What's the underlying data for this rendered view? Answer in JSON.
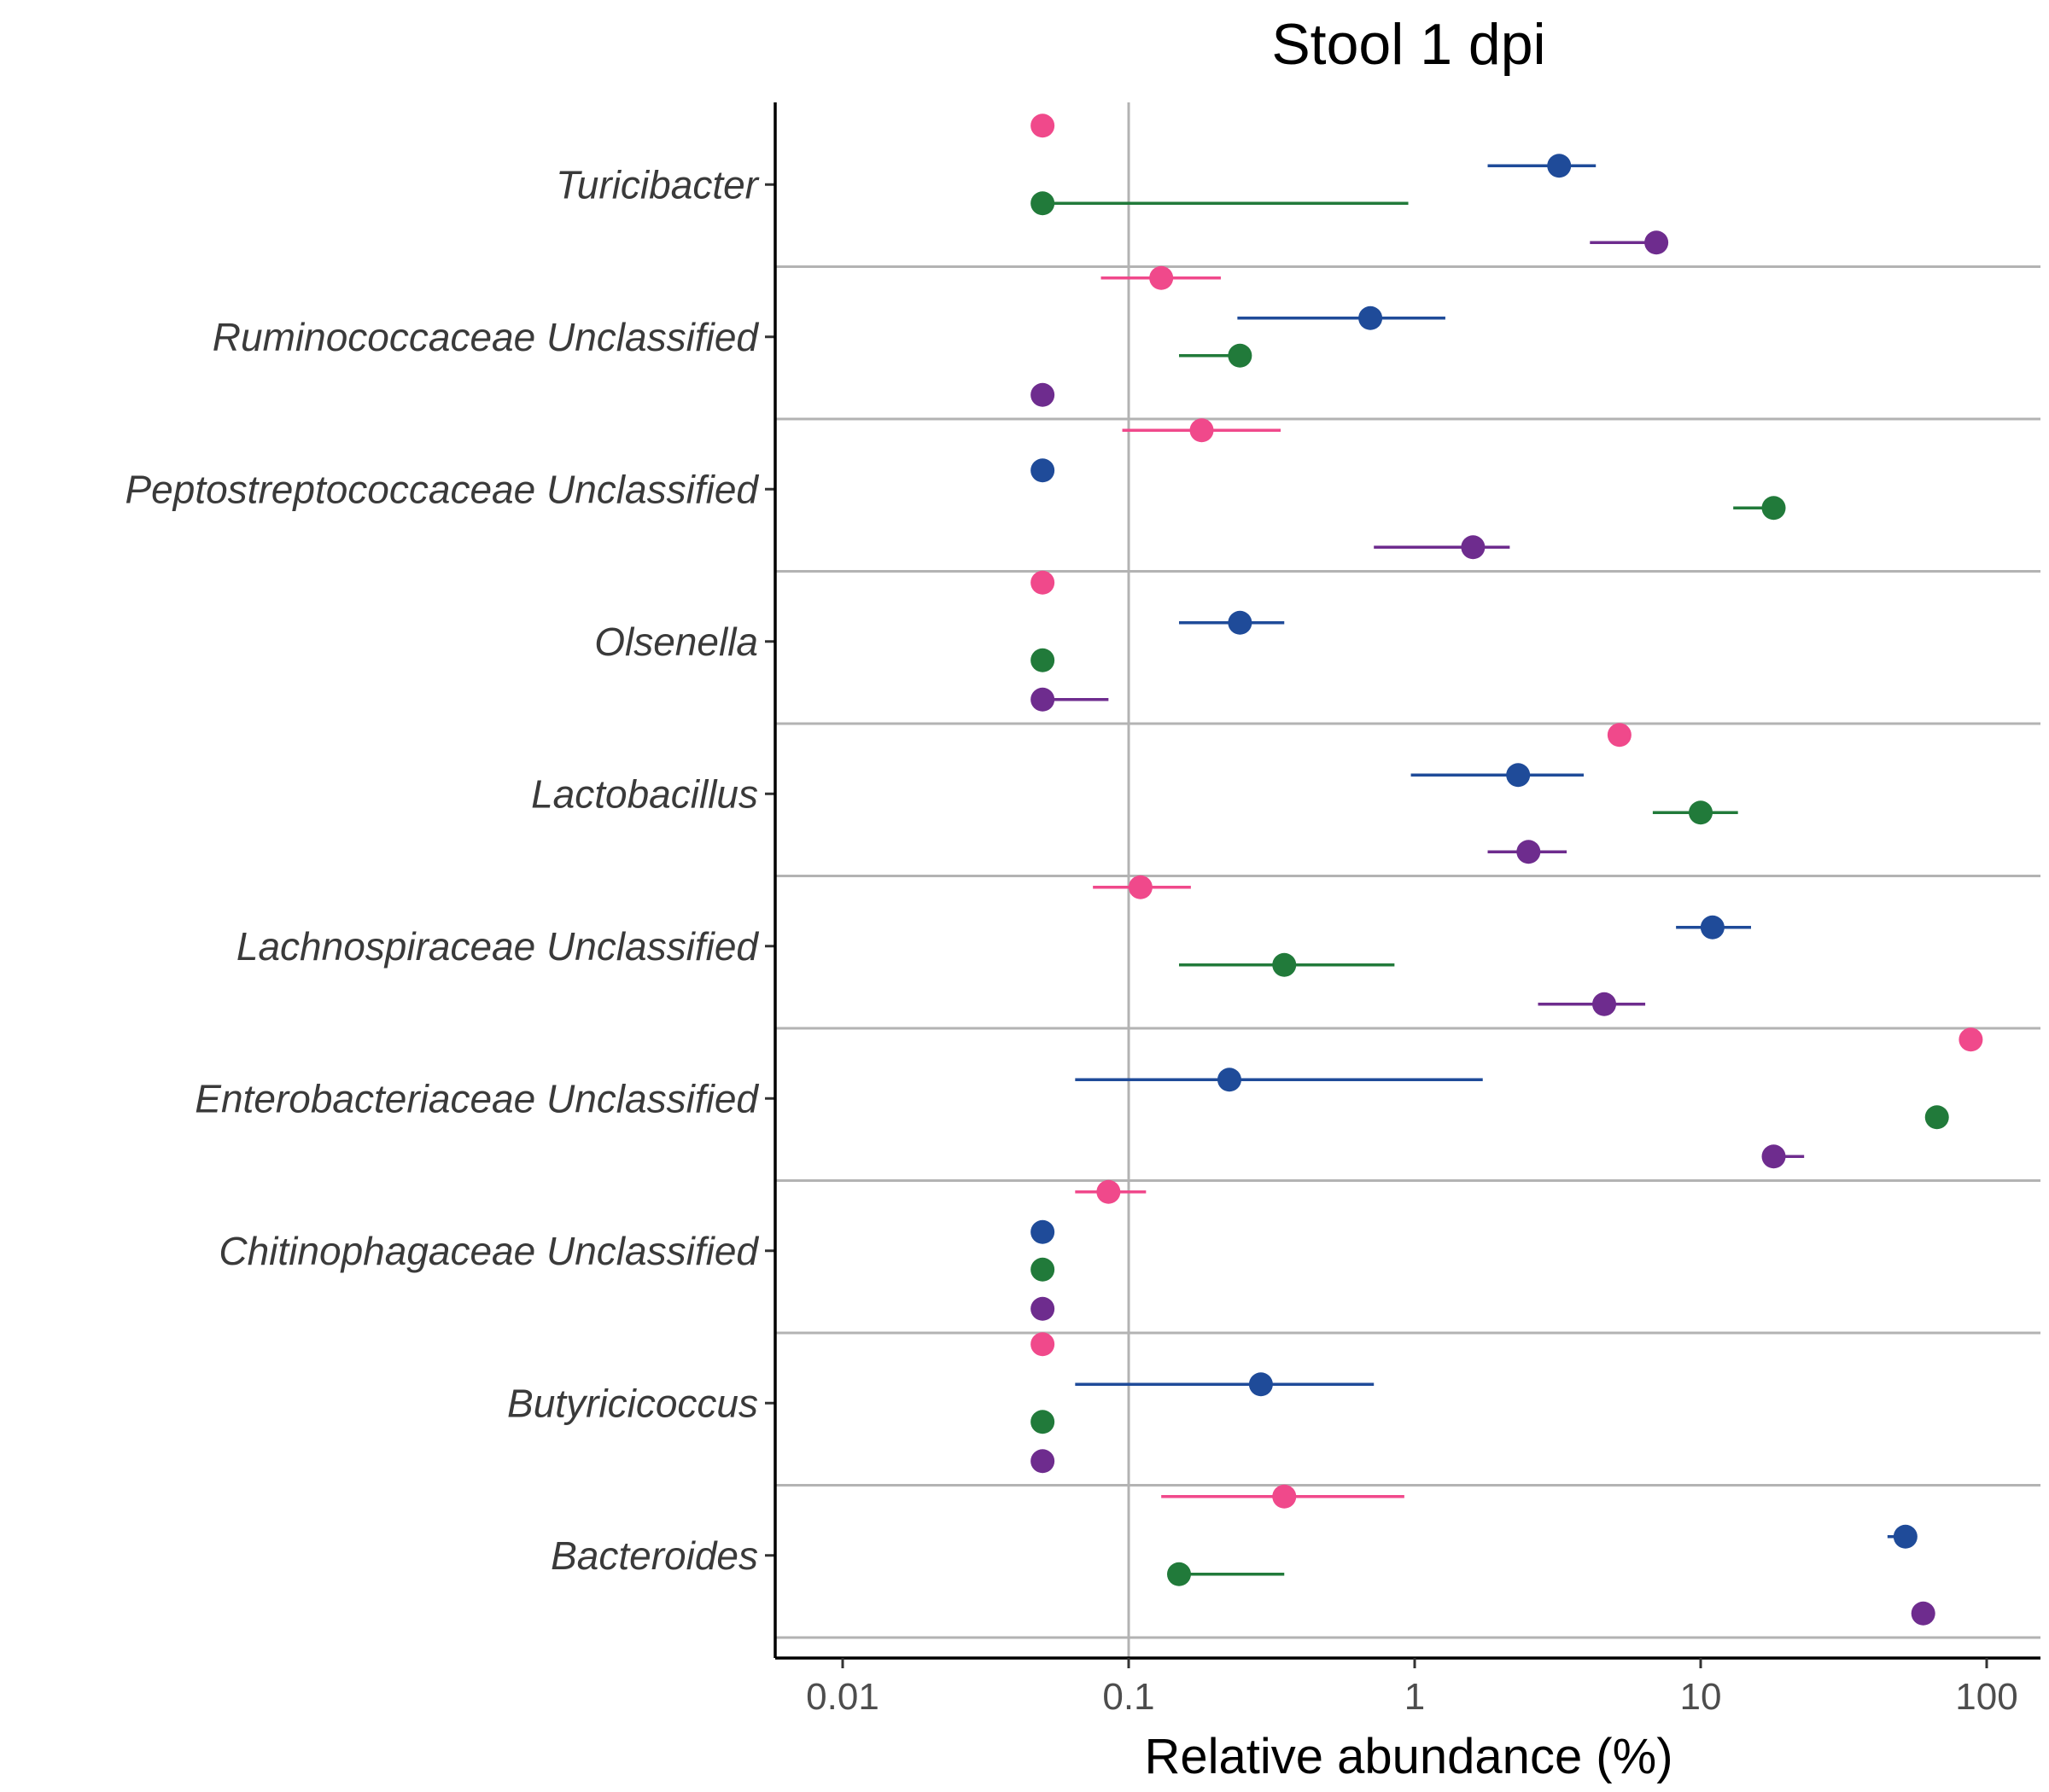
{
  "chart_data": {
    "type": "scatter",
    "title": "Stool 1 dpi",
    "xlabel": "Relative abundance (%)",
    "ylabel": "",
    "x_scale": "log10",
    "xlim": [
      0.006,
      150
    ],
    "x_ticks": [
      {
        "value": 0.01,
        "label": "0.01"
      },
      {
        "value": 0.1,
        "label": "0.1"
      },
      {
        "value": 1,
        "label": "1"
      },
      {
        "value": 10,
        "label": "10"
      },
      {
        "value": 100,
        "label": "100"
      }
    ],
    "reference_line_x": 0.1,
    "grid": false,
    "legend": "none",
    "categories": [
      "Turicibacter",
      "Ruminococcaceae Unclassified",
      "Peptostreptococcaceae Unclassified",
      "Olsenella",
      "Lactobacillus",
      "Lachnospiraceae Unclassified",
      "Enterobacteriaceae Unclassified",
      "Chitinophagaceae Unclassified",
      "Butyricicoccus",
      "Bacteroides"
    ],
    "series": [
      {
        "color": "#f0498b",
        "values": [
          0.05,
          0.13,
          0.18,
          0.05,
          5.2,
          0.11,
          88,
          0.085,
          0.05,
          0.35
        ],
        "lower": [
          null,
          0.08,
          0.095,
          null,
          null,
          0.075,
          null,
          0.065,
          null,
          0.13
        ],
        "upper": [
          null,
          0.21,
          0.34,
          null,
          null,
          0.165,
          null,
          0.115,
          null,
          0.92
        ]
      },
      {
        "color": "#1f4b99",
        "values": [
          3.2,
          0.7,
          0.05,
          0.245,
          2.3,
          11,
          0.225,
          0.05,
          0.29,
          52
        ],
        "lower": [
          1.8,
          0.24,
          null,
          0.15,
          0.97,
          8.2,
          0.065,
          null,
          0.065,
          45
        ],
        "upper": [
          4.3,
          1.28,
          null,
          0.35,
          3.9,
          15,
          1.73,
          null,
          0.72,
          null
        ]
      },
      {
        "color": "#217a3a",
        "values": [
          0.05,
          0.245,
          18,
          0.05,
          10,
          0.35,
          67,
          0.05,
          0.05,
          0.15
        ],
        "lower": [
          0.05,
          0.15,
          13,
          null,
          6.8,
          0.15,
          null,
          null,
          null,
          0.15
        ],
        "upper": [
          0.95,
          0.245,
          18,
          null,
          13.5,
          0.85,
          null,
          null,
          null,
          0.35
        ]
      },
      {
        "color": "#6e2c8e",
        "values": [
          7,
          0.05,
          1.6,
          0.05,
          2.5,
          4.6,
          18,
          0.05,
          0.05,
          60
        ],
        "lower": [
          4.1,
          null,
          0.72,
          0.05,
          1.8,
          2.7,
          18,
          null,
          null,
          60
        ],
        "upper": [
          7,
          null,
          2.15,
          0.085,
          3.4,
          6.4,
          23,
          null,
          null,
          66
        ]
      }
    ]
  }
}
